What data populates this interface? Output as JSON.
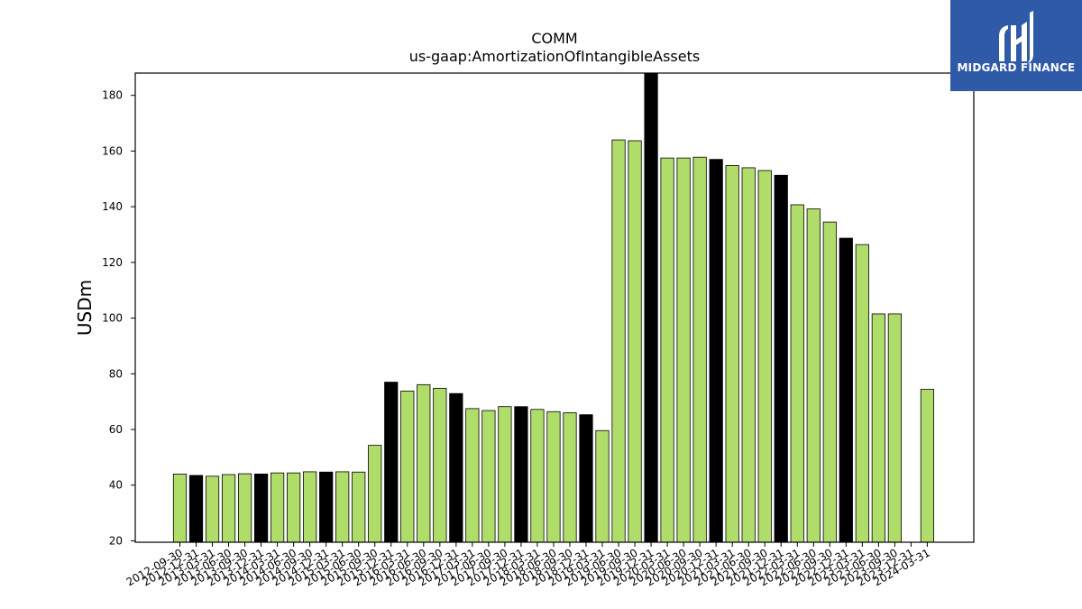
{
  "brand": {
    "name": "MIDGARD FINANCE",
    "logo_icon": "midgard-finance-logo-icon",
    "background": "#2f5aa8"
  },
  "colors": {
    "bar_regular": "#b0dd6a",
    "bar_highlight": "#000000",
    "bar_edge": "#000000"
  },
  "chart_data": {
    "type": "bar",
    "title": "COMM",
    "subtitle": "us-gaap:AmortizationOfIntangibleAssets",
    "xlabel": "",
    "ylabel": "USDm",
    "ylim": [
      19.5,
      188
    ],
    "yticks": [
      20,
      40,
      60,
      80,
      100,
      120,
      140,
      160,
      180
    ],
    "grid": false,
    "categories": [
      "2012-09-30",
      "2012-12-31",
      "2013-03-31",
      "2013-06-30",
      "2013-09-30",
      "2013-12-31",
      "2014-03-31",
      "2014-06-30",
      "2014-09-30",
      "2014-12-31",
      "2015-03-31",
      "2015-06-30",
      "2015-09-30",
      "2015-12-31",
      "2016-03-31",
      "2016-06-30",
      "2016-09-30",
      "2016-12-31",
      "2017-03-31",
      "2017-06-30",
      "2017-09-30",
      "2017-12-31",
      "2018-03-31",
      "2018-06-30",
      "2018-09-30",
      "2018-12-31",
      "2019-03-31",
      "2019-06-30",
      "2019-09-30",
      "2019-12-31",
      "2020-03-31",
      "2020-06-30",
      "2020-09-30",
      "2020-12-31",
      "2021-03-31",
      "2021-06-30",
      "2021-09-30",
      "2021-12-31",
      "2022-03-31",
      "2022-06-30",
      "2022-09-30",
      "2022-12-31",
      "2023-03-31",
      "2023-06-30",
      "2023-09-30",
      "2023-12-31",
      "2024-03-31"
    ],
    "values": [
      44.0,
      43.5,
      43.2,
      43.8,
      44.1,
      44.0,
      44.4,
      44.4,
      44.8,
      44.7,
      44.8,
      44.7,
      54.3,
      77.0,
      73.8,
      76.1,
      74.8,
      72.9,
      67.5,
      66.8,
      68.2,
      68.2,
      67.2,
      66.4,
      66.0,
      65.3,
      59.6,
      164.0,
      163.7,
      188.0,
      157.5,
      157.5,
      157.8,
      157.0,
      154.8,
      154.0,
      153.0,
      151.3,
      140.7,
      139.2,
      134.5,
      128.7,
      126.4,
      101.5,
      101.5,
      null,
      74.4
    ],
    "highlight": [
      false,
      true,
      false,
      false,
      false,
      true,
      false,
      false,
      false,
      true,
      false,
      false,
      false,
      true,
      false,
      false,
      false,
      true,
      false,
      false,
      false,
      true,
      false,
      false,
      false,
      true,
      false,
      false,
      false,
      true,
      false,
      false,
      false,
      true,
      false,
      false,
      false,
      true,
      false,
      false,
      false,
      true,
      false,
      false,
      false,
      true,
      false
    ]
  }
}
